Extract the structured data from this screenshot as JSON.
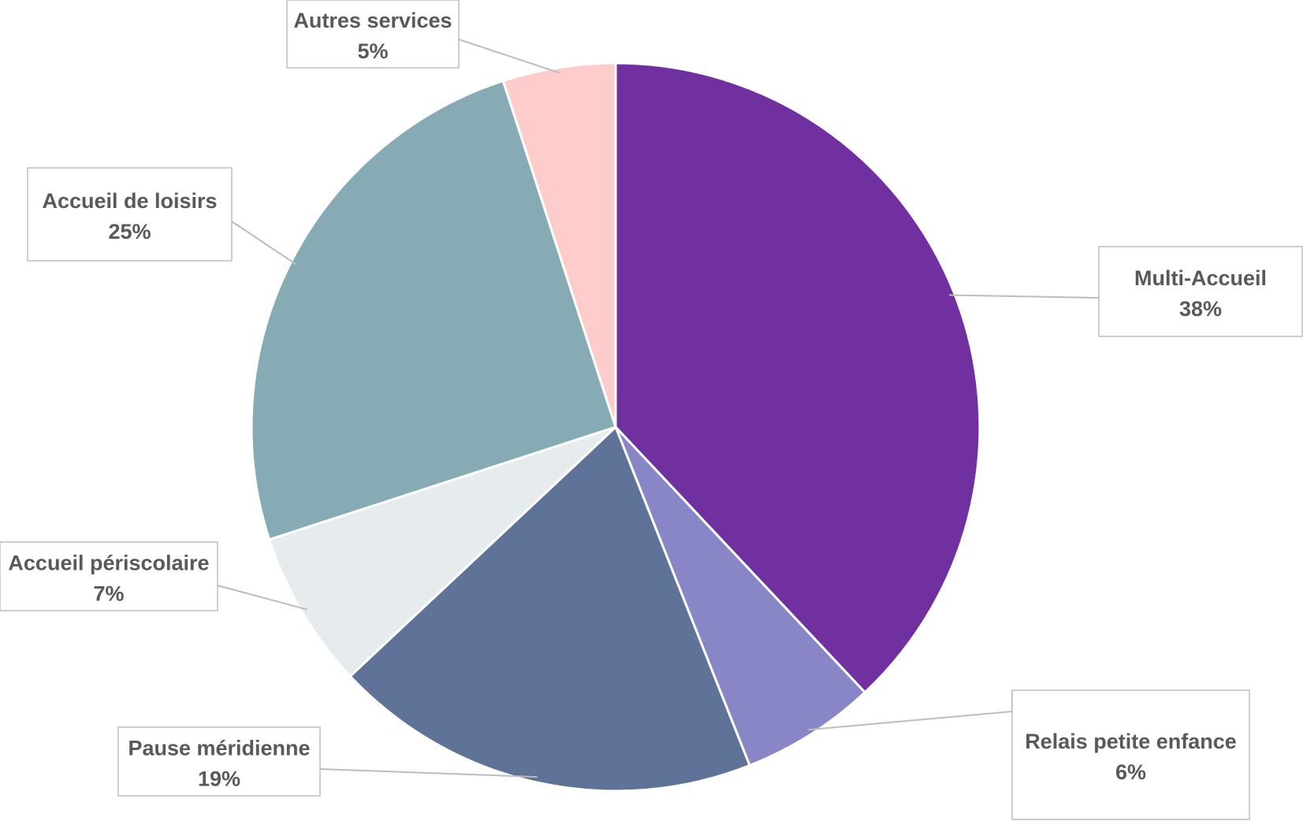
{
  "chart_data": {
    "type": "pie",
    "title": "",
    "start_angle_deg": 0,
    "direction": "clockwise",
    "slices": [
      {
        "name": "Multi-Accueil",
        "value": 38,
        "label": "38%",
        "color": "#7030a0"
      },
      {
        "name": "Relais petite enfance",
        "value": 6,
        "label": "6%",
        "color": "#8886c6"
      },
      {
        "name": "Pause méridienne",
        "value": 19,
        "label": "19%",
        "color": "#5f7298"
      },
      {
        "name": "Accueil périscolaire",
        "value": 7,
        "label": "7%",
        "color": "#e6ecee"
      },
      {
        "name": "Accueil de loisirs",
        "value": 25,
        "label": "25%",
        "color": "#86abb5"
      },
      {
        "name": "Autres services",
        "value": 5,
        "label": "5%",
        "color": "#ffcccc"
      }
    ]
  }
}
